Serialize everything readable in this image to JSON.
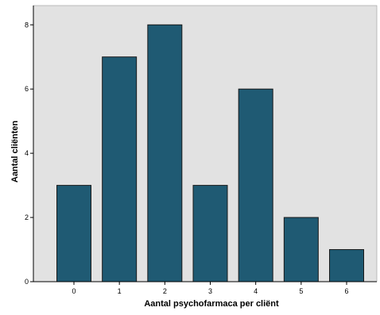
{
  "chart_data": {
    "type": "bar",
    "title": "",
    "xlabel": "Aantal psychofarmaca per cliënt",
    "ylabel": "Aantal cliënten",
    "categories": [
      "0",
      "1",
      "2",
      "3",
      "4",
      "5",
      "6"
    ],
    "values": [
      3,
      7,
      8,
      3,
      6,
      2,
      1
    ],
    "ylim": [
      0,
      8.6
    ],
    "yticks": [
      0,
      2,
      4,
      6,
      8
    ],
    "grid": false,
    "legend": "none",
    "colors": {
      "bar_fill": "#1f5a73",
      "bar_stroke": "#1a1a1a",
      "plot_background": "#e2e2e2",
      "axis": "#000000"
    }
  }
}
